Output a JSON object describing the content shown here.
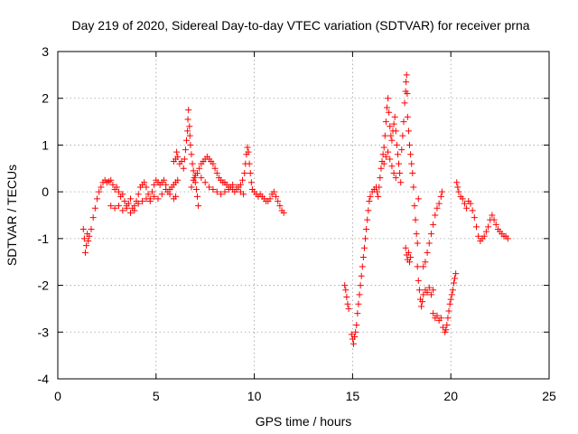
{
  "chart_data": {
    "type": "scatter",
    "title": "Day 219 of 2020, Sidereal Day-to-day VTEC variation (SDTVAR) for receiver prna",
    "xlabel": "GPS time / hours",
    "ylabel": "SDTVAR / TECUs",
    "xlim": [
      0,
      25
    ],
    "ylim": [
      -4,
      3
    ],
    "xticks": [
      "0",
      "5",
      "10",
      "15",
      "20",
      "25"
    ],
    "yticks": [
      "-4",
      "-3",
      "-2",
      "-1",
      "0",
      "1",
      "2",
      "3"
    ],
    "grid": true,
    "marker": "+",
    "color": "#ff0000",
    "series": [
      {
        "name": "SDTVAR",
        "points": [
          [
            1.3,
            -0.8
          ],
          [
            1.35,
            -1.0
          ],
          [
            1.4,
            -1.3
          ],
          [
            1.45,
            -1.15
          ],
          [
            1.5,
            -0.9
          ],
          [
            1.55,
            -1.05
          ],
          [
            1.6,
            -0.95
          ],
          [
            1.7,
            -0.8
          ],
          [
            1.8,
            -0.55
          ],
          [
            1.9,
            -0.35
          ],
          [
            2.0,
            -0.15
          ],
          [
            2.1,
            0.0
          ],
          [
            2.2,
            0.1
          ],
          [
            2.3,
            0.2
          ],
          [
            2.4,
            0.25
          ],
          [
            2.5,
            0.2
          ],
          [
            2.6,
            0.22
          ],
          [
            2.7,
            0.25
          ],
          [
            2.8,
            0.15
          ],
          [
            2.9,
            0.05
          ],
          [
            3.0,
            0.1
          ],
          [
            3.1,
            0.0
          ],
          [
            3.2,
            -0.1
          ],
          [
            3.3,
            -0.05
          ],
          [
            3.4,
            -0.2
          ],
          [
            3.5,
            -0.3
          ],
          [
            3.6,
            -0.25
          ],
          [
            3.7,
            -0.15
          ],
          [
            3.8,
            -0.35
          ],
          [
            3.9,
            -0.3
          ],
          [
            4.0,
            -0.2
          ],
          [
            4.1,
            -0.05
          ],
          [
            4.2,
            0.1
          ],
          [
            4.3,
            0.15
          ],
          [
            4.4,
            0.2
          ],
          [
            4.5,
            0.1
          ],
          [
            4.6,
            -0.05
          ],
          [
            4.7,
            -0.15
          ],
          [
            4.8,
            0.0
          ],
          [
            4.9,
            0.15
          ],
          [
            5.0,
            0.25
          ],
          [
            5.1,
            0.2
          ],
          [
            5.2,
            0.15
          ],
          [
            5.3,
            0.2
          ],
          [
            5.4,
            0.25
          ],
          [
            5.5,
            0.15
          ],
          [
            5.6,
            0.0
          ],
          [
            5.7,
            0.05
          ],
          [
            5.8,
            0.1
          ],
          [
            5.9,
            0.15
          ],
          [
            6.0,
            0.2
          ],
          [
            6.1,
            0.25
          ],
          [
            2.7,
            -0.3
          ],
          [
            2.9,
            -0.35
          ],
          [
            3.1,
            -0.3
          ],
          [
            3.3,
            -0.4
          ],
          [
            3.5,
            -0.35
          ],
          [
            3.7,
            -0.45
          ],
          [
            3.9,
            -0.4
          ],
          [
            4.1,
            -0.25
          ],
          [
            4.3,
            -0.2
          ],
          [
            4.5,
            -0.15
          ],
          [
            4.7,
            -0.2
          ],
          [
            4.9,
            -0.1
          ],
          [
            5.1,
            -0.15
          ],
          [
            5.3,
            -0.05
          ],
          [
            5.5,
            0.05
          ],
          [
            5.7,
            -0.05
          ],
          [
            5.9,
            -0.15
          ],
          [
            6.0,
            -0.1
          ],
          [
            5.9,
            0.65
          ],
          [
            6.0,
            0.7
          ],
          [
            6.05,
            0.85
          ],
          [
            6.1,
            0.75
          ],
          [
            6.2,
            0.6
          ],
          [
            6.3,
            0.65
          ],
          [
            6.4,
            0.5
          ],
          [
            6.45,
            0.7
          ],
          [
            6.5,
            0.9
          ],
          [
            6.55,
            1.1
          ],
          [
            6.6,
            1.3
          ],
          [
            6.62,
            1.55
          ],
          [
            6.65,
            1.75
          ],
          [
            6.7,
            1.4
          ],
          [
            6.72,
            1.2
          ],
          [
            6.75,
            1.0
          ],
          [
            6.8,
            0.8
          ],
          [
            6.85,
            0.6
          ],
          [
            6.9,
            0.45
          ],
          [
            6.95,
            0.3
          ],
          [
            7.0,
            0.2
          ],
          [
            7.05,
            0.05
          ],
          [
            7.1,
            -0.1
          ],
          [
            7.15,
            -0.3
          ],
          [
            6.8,
            0.1
          ],
          [
            6.9,
            0.25
          ],
          [
            7.0,
            0.35
          ],
          [
            7.1,
            0.4
          ],
          [
            7.2,
            0.5
          ],
          [
            7.3,
            0.6
          ],
          [
            7.4,
            0.65
          ],
          [
            7.5,
            0.7
          ],
          [
            7.6,
            0.75
          ],
          [
            7.7,
            0.7
          ],
          [
            7.8,
            0.65
          ],
          [
            7.9,
            0.6
          ],
          [
            8.0,
            0.5
          ],
          [
            8.1,
            0.4
          ],
          [
            8.2,
            0.3
          ],
          [
            8.3,
            0.25
          ],
          [
            8.4,
            0.2
          ],
          [
            8.5,
            0.2
          ],
          [
            8.6,
            0.15
          ],
          [
            8.7,
            0.1
          ],
          [
            8.8,
            0.1
          ],
          [
            8.9,
            0.05
          ],
          [
            9.0,
            0.0
          ],
          [
            9.1,
            0.05
          ],
          [
            9.2,
            0.1
          ],
          [
            9.3,
            0.15
          ],
          [
            9.4,
            0.25
          ],
          [
            7.3,
            0.3
          ],
          [
            7.5,
            0.2
          ],
          [
            7.7,
            0.1
          ],
          [
            7.9,
            0.05
          ],
          [
            8.1,
            0.0
          ],
          [
            8.3,
            -0.05
          ],
          [
            8.5,
            0.0
          ],
          [
            8.7,
            0.05
          ],
          [
            8.9,
            0.15
          ],
          [
            9.1,
            0.1
          ],
          [
            9.3,
            0.0
          ],
          [
            9.45,
            -0.05
          ],
          [
            9.5,
            0.4
          ],
          [
            9.55,
            0.6
          ],
          [
            9.6,
            0.8
          ],
          [
            9.65,
            0.95
          ],
          [
            9.7,
            0.85
          ],
          [
            9.75,
            0.6
          ],
          [
            9.8,
            0.4
          ],
          [
            9.85,
            0.2
          ],
          [
            9.9,
            0.05
          ],
          [
            10.0,
            0.0
          ],
          [
            10.1,
            -0.05
          ],
          [
            10.2,
            -0.1
          ],
          [
            10.3,
            -0.05
          ],
          [
            10.4,
            -0.1
          ],
          [
            10.5,
            -0.15
          ],
          [
            10.6,
            -0.2
          ],
          [
            10.7,
            -0.2
          ],
          [
            10.8,
            -0.15
          ],
          [
            10.9,
            -0.05
          ],
          [
            11.0,
            0.0
          ],
          [
            11.1,
            -0.1
          ],
          [
            11.2,
            -0.2
          ],
          [
            11.3,
            -0.3
          ],
          [
            11.4,
            -0.4
          ],
          [
            11.5,
            -0.45
          ],
          [
            14.6,
            -2.0
          ],
          [
            14.65,
            -2.1
          ],
          [
            14.7,
            -2.25
          ],
          [
            14.75,
            -2.4
          ],
          [
            14.8,
            -2.5
          ],
          [
            14.95,
            -3.05
          ],
          [
            15.0,
            -3.15
          ],
          [
            15.05,
            -3.25
          ],
          [
            15.1,
            -3.1
          ],
          [
            15.15,
            -3.0
          ],
          [
            15.2,
            -2.85
          ],
          [
            15.25,
            -2.6
          ],
          [
            15.3,
            -2.4
          ],
          [
            15.35,
            -2.2
          ],
          [
            15.4,
            -2.0
          ],
          [
            15.45,
            -1.8
          ],
          [
            15.5,
            -1.6
          ],
          [
            15.55,
            -1.4
          ],
          [
            15.6,
            -1.2
          ],
          [
            15.65,
            -1.0
          ],
          [
            15.7,
            -0.8
          ],
          [
            15.75,
            -0.6
          ],
          [
            15.8,
            -0.4
          ],
          [
            15.85,
            -0.2
          ],
          [
            15.9,
            -0.1
          ],
          [
            16.0,
            0.0
          ],
          [
            16.1,
            0.05
          ],
          [
            16.2,
            0.1
          ],
          [
            16.25,
            0.0
          ],
          [
            16.3,
            -0.1
          ],
          [
            16.35,
            0.1
          ],
          [
            16.4,
            0.3
          ],
          [
            16.45,
            0.5
          ],
          [
            16.5,
            0.65
          ],
          [
            16.55,
            0.8
          ],
          [
            16.6,
            0.95
          ],
          [
            16.65,
            1.2
          ],
          [
            16.7,
            1.5
          ],
          [
            16.75,
            1.8
          ],
          [
            16.8,
            2.0
          ],
          [
            16.85,
            1.7
          ],
          [
            16.9,
            1.4
          ],
          [
            16.95,
            1.2
          ],
          [
            17.0,
            1.1
          ],
          [
            17.05,
            1.3
          ],
          [
            17.1,
            1.45
          ],
          [
            17.15,
            1.6
          ],
          [
            17.2,
            1.3
          ],
          [
            17.25,
            1.0
          ],
          [
            17.3,
            0.8
          ],
          [
            17.35,
            0.6
          ],
          [
            17.4,
            0.4
          ],
          [
            17.45,
            0.2
          ],
          [
            16.6,
            0.6
          ],
          [
            16.7,
            0.75
          ],
          [
            16.8,
            0.85
          ],
          [
            16.9,
            0.7
          ],
          [
            17.0,
            0.55
          ],
          [
            17.1,
            0.4
          ],
          [
            17.2,
            0.3
          ],
          [
            17.5,
            0.9
          ],
          [
            17.55,
            1.2
          ],
          [
            17.6,
            1.5
          ],
          [
            17.65,
            1.9
          ],
          [
            17.7,
            2.15
          ],
          [
            17.72,
            2.35
          ],
          [
            17.75,
            2.5
          ],
          [
            17.78,
            2.1
          ],
          [
            17.8,
            1.6
          ],
          [
            17.85,
            1.3
          ],
          [
            17.9,
            1.0
          ],
          [
            17.95,
            0.8
          ],
          [
            18.0,
            0.6
          ],
          [
            18.05,
            0.4
          ],
          [
            18.1,
            0.1
          ],
          [
            18.15,
            -0.3
          ],
          [
            18.2,
            -0.6
          ],
          [
            18.25,
            -0.9
          ],
          [
            18.3,
            -1.1
          ],
          [
            18.35,
            -0.15
          ],
          [
            17.7,
            -1.2
          ],
          [
            17.75,
            -1.35
          ],
          [
            17.8,
            -1.45
          ],
          [
            17.85,
            -1.3
          ],
          [
            17.9,
            -1.5
          ],
          [
            17.95,
            -1.4
          ],
          [
            18.3,
            -1.6
          ],
          [
            18.35,
            -1.9
          ],
          [
            18.4,
            -2.1
          ],
          [
            18.45,
            -2.3
          ],
          [
            18.5,
            -2.45
          ],
          [
            18.55,
            -2.35
          ],
          [
            18.6,
            -2.2
          ],
          [
            18.7,
            -2.1
          ],
          [
            18.8,
            -2.15
          ],
          [
            18.9,
            -2.05
          ],
          [
            19.0,
            -2.2
          ],
          [
            19.1,
            -2.1
          ],
          [
            18.6,
            -1.6
          ],
          [
            18.7,
            -1.5
          ],
          [
            18.8,
            -1.3
          ],
          [
            18.9,
            -1.1
          ],
          [
            19.0,
            -0.9
          ],
          [
            19.1,
            -0.7
          ],
          [
            19.2,
            -0.5
          ],
          [
            19.3,
            -0.35
          ],
          [
            19.4,
            -0.25
          ],
          [
            19.5,
            -0.1
          ],
          [
            19.55,
            0.0
          ],
          [
            19.1,
            -2.6
          ],
          [
            19.2,
            -2.7
          ],
          [
            19.3,
            -2.65
          ],
          [
            19.4,
            -2.75
          ],
          [
            19.5,
            -2.7
          ],
          [
            19.6,
            -2.9
          ],
          [
            19.7,
            -3.0
          ],
          [
            19.75,
            -2.95
          ],
          [
            19.8,
            -2.85
          ],
          [
            19.85,
            -2.7
          ],
          [
            19.9,
            -2.55
          ],
          [
            19.95,
            -2.4
          ],
          [
            20.0,
            -2.3
          ],
          [
            20.05,
            -2.2
          ],
          [
            20.1,
            -2.1
          ],
          [
            20.15,
            -1.95
          ],
          [
            20.2,
            -1.85
          ],
          [
            20.25,
            -1.75
          ],
          [
            20.3,
            0.2
          ],
          [
            20.35,
            0.1
          ],
          [
            20.4,
            0.0
          ],
          [
            20.5,
            -0.1
          ],
          [
            20.6,
            -0.15
          ],
          [
            20.7,
            -0.25
          ],
          [
            20.8,
            -0.35
          ],
          [
            20.9,
            -0.2
          ],
          [
            21.0,
            -0.25
          ],
          [
            21.1,
            -0.4
          ],
          [
            21.2,
            -0.55
          ],
          [
            21.3,
            -0.75
          ],
          [
            21.4,
            -0.95
          ],
          [
            21.5,
            -1.05
          ],
          [
            21.6,
            -1.0
          ],
          [
            21.7,
            -0.95
          ],
          [
            21.8,
            -0.85
          ],
          [
            21.9,
            -0.75
          ],
          [
            22.0,
            -0.6
          ],
          [
            22.1,
            -0.5
          ],
          [
            22.2,
            -0.6
          ],
          [
            22.3,
            -0.7
          ],
          [
            22.4,
            -0.8
          ],
          [
            22.5,
            -0.85
          ],
          [
            22.6,
            -0.9
          ],
          [
            22.7,
            -0.95
          ],
          [
            22.8,
            -0.95
          ],
          [
            22.9,
            -1.0
          ]
        ]
      }
    ]
  }
}
